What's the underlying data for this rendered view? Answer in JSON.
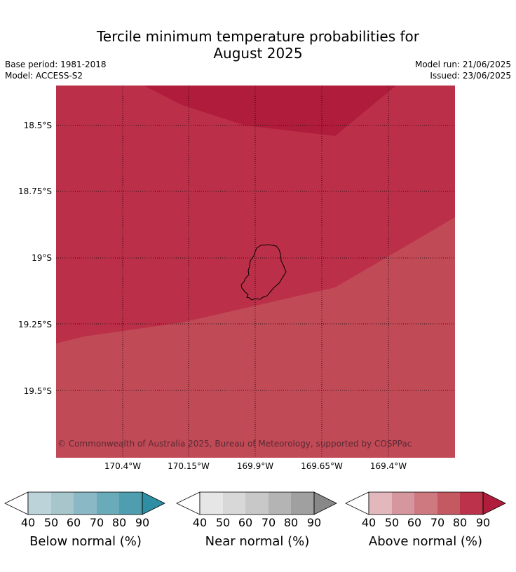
{
  "title_line1": "Tercile minimum temperature probabilities for",
  "title_line2": "August 2025",
  "base_period": "Base period: 1981-2018",
  "model": "Model: ACCESS-S2",
  "model_run": "Model run: 21/06/2025",
  "issued": "Issued: 23/06/2025",
  "lat_ticks": [
    "18.5°S",
    "18.75°S",
    "19°S",
    "19.25°S",
    "19.5°S"
  ],
  "lon_ticks": [
    "170.4°W",
    "170.15°W",
    "169.9°W",
    "169.65°W",
    "169.4°W"
  ],
  "copyright": "© Commonwealth of Australia 2025, Bureau of Meteorology, supported by COSPPac",
  "legend": {
    "below": {
      "label": "Below normal (%)",
      "ticks": [
        "40",
        "50",
        "60",
        "70",
        "80",
        "90"
      ],
      "colors": [
        "#bdd3da",
        "#a6c6cc",
        "#8ab8c4",
        "#6aabba",
        "#4e9eb0",
        "#2f8ea3"
      ]
    },
    "near": {
      "label": "Near normal (%)",
      "ticks": [
        "40",
        "50",
        "60",
        "70",
        "80",
        "90"
      ],
      "colors": [
        "#e6e6e6",
        "#d8d8d8",
        "#c8c8c8",
        "#b4b4b4",
        "#a0a0a0",
        "#888888"
      ]
    },
    "above": {
      "label": "Above normal (%)",
      "ticks": [
        "40",
        "50",
        "60",
        "70",
        "80",
        "90"
      ],
      "colors": [
        "#e3b8bd",
        "#d5969d",
        "#ce7880",
        "#c45962",
        "#bb324a",
        "#b01c3b"
      ]
    }
  },
  "map_colors": {
    "cat_70_80": "#c04a56",
    "cat_80_90": "#bb3048",
    "cat_90": "#b01c3b"
  }
}
